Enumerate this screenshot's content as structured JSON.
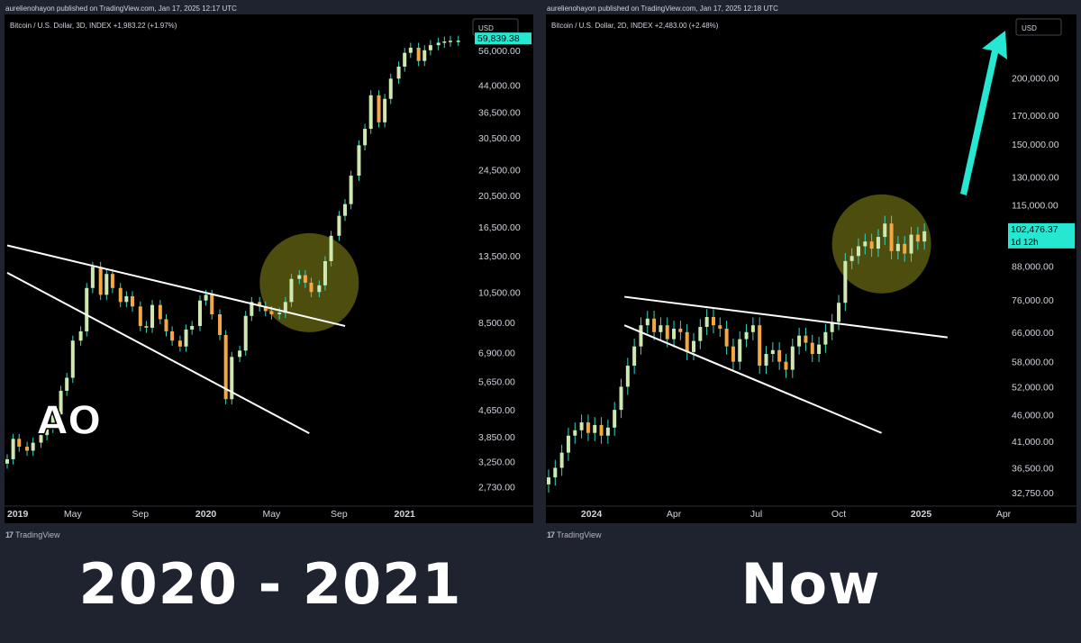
{
  "panels": [
    {
      "publish_line": "aurelienohayon published on TradingView.com, Jan 17, 2025 12:17 UTC",
      "legend": "Bitcoin / U.S. Dollar, 3D, INDEX  +1,983.22 (+1.97%)",
      "currency_label": "USD",
      "brand": "TradingView",
      "watermark": "AO",
      "caption": "2020 - 2021"
    },
    {
      "publish_line": "aurelienohayon published on TradingView.com, Jan 17, 2025 12:18 UTC",
      "legend": "Bitcoin / U.S. Dollar, 2D, INDEX  +2,483.00 (+2.48%)",
      "currency_label": "USD",
      "brand": "TradingView",
      "caption": "Now"
    }
  ],
  "colors": {
    "background": "#000000",
    "frame": "#1f2330",
    "up_candle": "#cfe8b0",
    "down_candle": "#f5a742",
    "wick": "#3bd4c0",
    "trendline": "#ffffff",
    "highlight_circle": "#5a5a10",
    "price_tag": "#26e8d2",
    "arrow": "#26e8d2",
    "axis_text": "#d1d4dc"
  },
  "chart_data": [
    {
      "type": "line",
      "scale": "log",
      "title": "Bitcoin / U.S. Dollar, 3D, INDEX",
      "y_ticks": [
        2730,
        3250,
        3850,
        4650,
        5650,
        6900,
        8500,
        10500,
        13500,
        16500,
        20500,
        24500,
        30500,
        36500,
        44000,
        56000
      ],
      "y_tick_labels": [
        "2,730.00",
        "3,250.00",
        "3,850.00",
        "4,650.00",
        "5,650.00",
        "6,900.00",
        "8,500.00",
        "10,500.00",
        "13,500.00",
        "16,500.00",
        "20,500.00",
        "24,500.00",
        "30,500.00",
        "36,500.00",
        "44,000.00",
        "56,000.00"
      ],
      "ylim": [
        2400,
        70000
      ],
      "x_labels": [
        "2019",
        "May",
        "Sep",
        "2020",
        "May",
        "Sep",
        "2021"
      ],
      "x_label_positions": [
        0.0,
        0.33,
        0.67,
        1.0,
        1.33,
        1.67,
        2.0
      ],
      "xlim": [
        0.0,
        2.33
      ],
      "last_price_label": "59,839.38",
      "series": [
        {
          "x": [
            0.0,
            0.03,
            0.06,
            0.1,
            0.13,
            0.17,
            0.2,
            0.23,
            0.27,
            0.3,
            0.33,
            0.37,
            0.4,
            0.43,
            0.47,
            0.5,
            0.53,
            0.57,
            0.6,
            0.63,
            0.67,
            0.7,
            0.73,
            0.77,
            0.8,
            0.83,
            0.87,
            0.9,
            0.93,
            0.97,
            1.0,
            1.03,
            1.07,
            1.1,
            1.13,
            1.17,
            1.2,
            1.23,
            1.27,
            1.3,
            1.33,
            1.37,
            1.4,
            1.43,
            1.47,
            1.5,
            1.53,
            1.57,
            1.6,
            1.63,
            1.67,
            1.7,
            1.73,
            1.77,
            1.8,
            1.83,
            1.87,
            1.9,
            1.93,
            1.97,
            2.0,
            2.03,
            2.07,
            2.1,
            2.13,
            2.17,
            2.2,
            2.23,
            2.27
          ],
          "values": [
            3300,
            3800,
            3600,
            3500,
            3700,
            3900,
            4100,
            4500,
            5300,
            5800,
            7500,
            8000,
            10800,
            12500,
            10300,
            11900,
            10800,
            9800,
            10200,
            9500,
            8300,
            8200,
            9600,
            8700,
            8000,
            7500,
            7200,
            8100,
            8300,
            9900,
            10300,
            9000,
            7800,
            5000,
            6700,
            7000,
            8900,
            9800,
            9500,
            9200,
            9000,
            9100,
            9800,
            11500,
            11800,
            11200,
            10500,
            11000,
            13000,
            15500,
            17800,
            19300,
            23500,
            29000,
            32500,
            41000,
            34000,
            40000,
            46000,
            50000,
            55000,
            57000,
            52000,
            56000,
            58000,
            59000,
            59500,
            59800,
            59839
          ]
        }
      ]
    },
    {
      "type": "line",
      "scale": "log",
      "title": "Bitcoin / U.S. Dollar, 2D, INDEX",
      "y_ticks": [
        32750,
        36500,
        41000,
        46000,
        52000,
        58000,
        66000,
        76000,
        88000,
        115000,
        130000,
        150000,
        170000,
        200000
      ],
      "y_tick_labels": [
        "32,750.00",
        "36,500.00",
        "41,000.00",
        "46,000.00",
        "52,000.00",
        "58,000.00",
        "66,000.00",
        "76,000.00",
        "88,000.00",
        "115,000.00",
        "130,000.00",
        "150,000.00",
        "170,000.00",
        "200,000.00"
      ],
      "ylim": [
        31000,
        260000
      ],
      "x_labels": [
        "2024",
        "Apr",
        "Jul",
        "Oct",
        "2025",
        "Apr"
      ],
      "x_label_positions": [
        0.0,
        0.25,
        0.5,
        0.75,
        1.0,
        1.25
      ],
      "xlim": [
        -0.13,
        1.25
      ],
      "last_price_label": "102,476.37",
      "countdown_label": "1d 12h",
      "series": [
        {
          "x": [
            -0.13,
            -0.11,
            -0.09,
            -0.07,
            -0.05,
            -0.03,
            -0.01,
            0.01,
            0.03,
            0.05,
            0.07,
            0.09,
            0.11,
            0.13,
            0.15,
            0.17,
            0.19,
            0.21,
            0.23,
            0.25,
            0.27,
            0.29,
            0.31,
            0.33,
            0.35,
            0.37,
            0.39,
            0.41,
            0.43,
            0.45,
            0.47,
            0.49,
            0.51,
            0.53,
            0.55,
            0.57,
            0.59,
            0.61,
            0.63,
            0.65,
            0.67,
            0.69,
            0.71,
            0.73,
            0.75,
            0.77,
            0.79,
            0.81,
            0.83,
            0.85,
            0.87,
            0.89,
            0.91,
            0.93,
            0.95,
            0.97,
            0.99,
            1.01
          ],
          "values": [
            35000,
            36500,
            39000,
            42000,
            43000,
            44500,
            42500,
            44000,
            42000,
            43500,
            47000,
            52000,
            57000,
            62000,
            68000,
            70000,
            66000,
            68000,
            64000,
            67000,
            66000,
            60500,
            63500,
            67500,
            70500,
            68000,
            67000,
            62000,
            58000,
            64000,
            66000,
            68000,
            57000,
            60000,
            61000,
            58000,
            56000,
            62000,
            65000,
            63000,
            60000,
            62500,
            66000,
            69000,
            75000,
            90000,
            92000,
            96000,
            98000,
            95000,
            100000,
            106000,
            94000,
            97000,
            93000,
            101000,
            98000,
            102476
          ]
        }
      ]
    }
  ]
}
